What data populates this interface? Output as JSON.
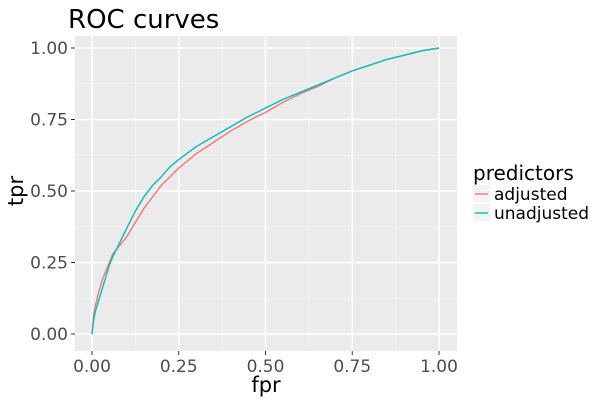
{
  "chart_data": {
    "type": "line",
    "title": "ROC curves",
    "xlabel": "fpr",
    "ylabel": "tpr",
    "xlim": [
      0,
      1
    ],
    "ylim": [
      0,
      1
    ],
    "x_ticks": [
      0,
      0.25,
      0.5,
      0.75,
      1
    ],
    "x_tick_labels": [
      "0.00",
      "0.25",
      "0.50",
      "0.75",
      "1.00"
    ],
    "y_ticks": [
      0,
      0.25,
      0.5,
      0.75,
      1
    ],
    "y_tick_labels": [
      "0.00",
      "0.25",
      "0.50",
      "0.75",
      "1.00"
    ],
    "grid": true,
    "panel_color": "#ebebeb",
    "legend": {
      "title": "predictors",
      "position": "right"
    },
    "series": [
      {
        "name": "adjusted",
        "color": "#f8766d",
        "points": [
          [
            0,
            0
          ],
          [
            0.005,
            0.07
          ],
          [
            0.01,
            0.1
          ],
          [
            0.02,
            0.15
          ],
          [
            0.03,
            0.19
          ],
          [
            0.04,
            0.22
          ],
          [
            0.05,
            0.25
          ],
          [
            0.06,
            0.28
          ],
          [
            0.08,
            0.31
          ],
          [
            0.1,
            0.34
          ],
          [
            0.125,
            0.39
          ],
          [
            0.15,
            0.44
          ],
          [
            0.175,
            0.48
          ],
          [
            0.2,
            0.52
          ],
          [
            0.225,
            0.55
          ],
          [
            0.25,
            0.58
          ],
          [
            0.3,
            0.63
          ],
          [
            0.35,
            0.67
          ],
          [
            0.4,
            0.71
          ],
          [
            0.45,
            0.745
          ],
          [
            0.5,
            0.775
          ],
          [
            0.55,
            0.81
          ],
          [
            0.6,
            0.84
          ],
          [
            0.65,
            0.865
          ],
          [
            0.7,
            0.895
          ],
          [
            0.75,
            0.92
          ],
          [
            0.8,
            0.94
          ],
          [
            0.85,
            0.96
          ],
          [
            0.9,
            0.975
          ],
          [
            0.95,
            0.99
          ],
          [
            1.0,
            1.0
          ]
        ]
      },
      {
        "name": "unadjusted",
        "color": "#00bfc4",
        "points": [
          [
            0,
            0
          ],
          [
            0.005,
            0.05
          ],
          [
            0.01,
            0.08
          ],
          [
            0.02,
            0.12
          ],
          [
            0.03,
            0.16
          ],
          [
            0.04,
            0.2
          ],
          [
            0.05,
            0.24
          ],
          [
            0.06,
            0.27
          ],
          [
            0.08,
            0.32
          ],
          [
            0.1,
            0.37
          ],
          [
            0.125,
            0.43
          ],
          [
            0.15,
            0.48
          ],
          [
            0.175,
            0.52
          ],
          [
            0.2,
            0.55
          ],
          [
            0.225,
            0.585
          ],
          [
            0.25,
            0.61
          ],
          [
            0.3,
            0.655
          ],
          [
            0.35,
            0.69
          ],
          [
            0.4,
            0.725
          ],
          [
            0.45,
            0.76
          ],
          [
            0.5,
            0.79
          ],
          [
            0.55,
            0.82
          ],
          [
            0.6,
            0.845
          ],
          [
            0.65,
            0.87
          ],
          [
            0.7,
            0.895
          ],
          [
            0.75,
            0.92
          ],
          [
            0.8,
            0.94
          ],
          [
            0.85,
            0.96
          ],
          [
            0.9,
            0.975
          ],
          [
            0.95,
            0.99
          ],
          [
            1.0,
            1.0
          ]
        ]
      }
    ]
  }
}
